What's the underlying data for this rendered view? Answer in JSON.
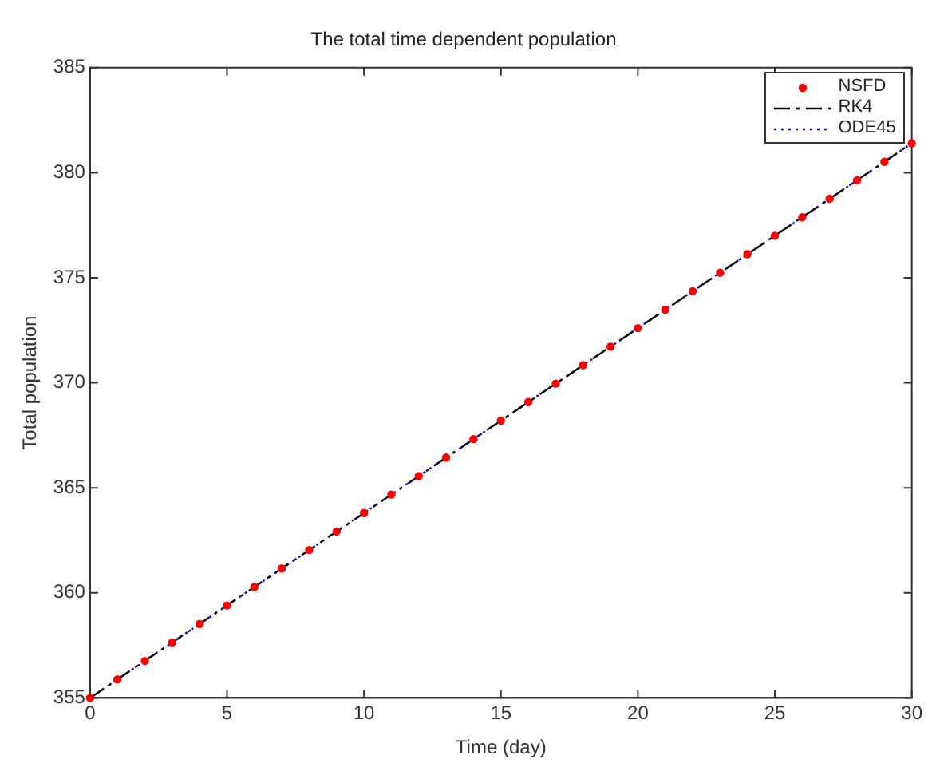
{
  "chart_data": {
    "type": "line",
    "title": "The total time dependent population",
    "xlabel": "Time (day)",
    "ylabel": "Total population",
    "x": [
      0,
      1,
      2,
      3,
      4,
      5,
      6,
      7,
      8,
      9,
      10,
      11,
      12,
      13,
      14,
      15,
      16,
      17,
      18,
      19,
      20,
      21,
      22,
      23,
      24,
      25,
      26,
      27,
      28,
      29,
      30
    ],
    "xlim": [
      0,
      30
    ],
    "xticks": [
      0,
      5,
      10,
      15,
      20,
      25,
      30
    ],
    "ylim": [
      355,
      385
    ],
    "yticks": [
      355,
      360,
      365,
      370,
      375,
      380,
      385
    ],
    "grid": false,
    "legend": "top right",
    "series": [
      {
        "name": "ODE45",
        "color": "#0000ff",
        "line_style": "dotted",
        "marker": "none",
        "values": [
          355,
          355.88,
          356.76,
          357.64,
          358.52,
          359.4,
          360.28,
          361.16,
          362.04,
          362.92,
          363.8,
          364.68,
          365.56,
          366.44,
          367.32,
          368.2,
          369.08,
          369.96,
          370.84,
          371.72,
          372.6,
          373.48,
          374.36,
          375.24,
          376.12,
          377,
          377.88,
          378.76,
          379.64,
          380.52,
          381.4
        ]
      },
      {
        "name": "RK4",
        "color": "#000000",
        "line_style": "dashdot",
        "marker": "none",
        "values": [
          355,
          355.88,
          356.76,
          357.64,
          358.52,
          359.4,
          360.28,
          361.16,
          362.04,
          362.92,
          363.8,
          364.68,
          365.56,
          366.44,
          367.32,
          368.2,
          369.08,
          369.96,
          370.84,
          371.72,
          372.6,
          373.48,
          374.36,
          375.24,
          376.12,
          377,
          377.88,
          378.76,
          379.64,
          380.52,
          381.4
        ]
      },
      {
        "name": "NSFD",
        "type": "scatter",
        "color": "#ff0000",
        "marker": "circle",
        "values": [
          355,
          355.88,
          356.76,
          357.64,
          358.52,
          359.4,
          360.28,
          361.16,
          362.04,
          362.92,
          363.8,
          364.68,
          365.56,
          366.44,
          367.32,
          368.2,
          369.08,
          369.96,
          370.84,
          371.72,
          372.6,
          373.48,
          374.36,
          375.24,
          376.12,
          377,
          377.88,
          378.76,
          379.64,
          380.52,
          381.4
        ]
      }
    ]
  }
}
